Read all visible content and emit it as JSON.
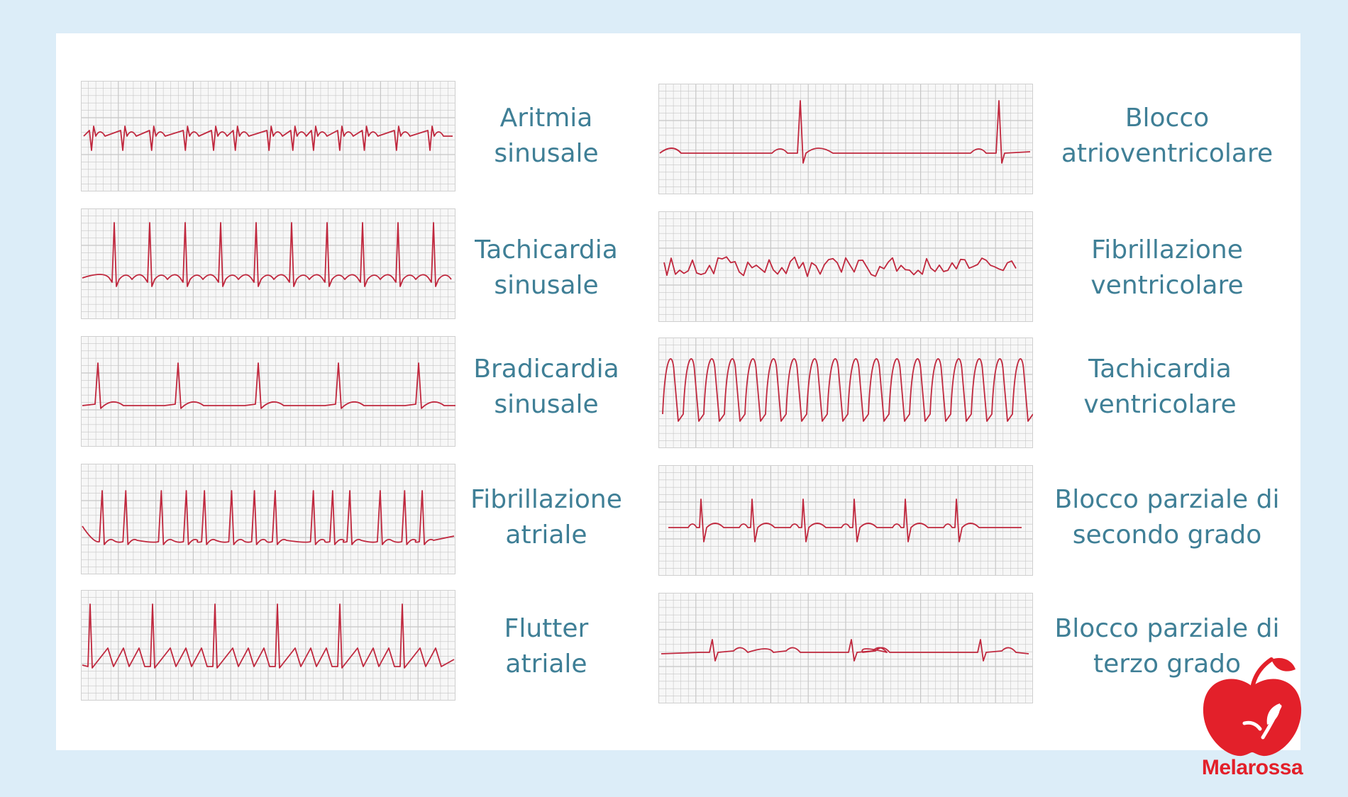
{
  "colors": {
    "background": "#dcedf8",
    "card": "#ffffff",
    "trace": "#c0283e",
    "grid": "#c6c6c6",
    "label": "#3f7f96",
    "brand": "#e3202a"
  },
  "panels": [
    {
      "line1": "Aritmia",
      "line2": "sinusale",
      "pattern": "irregular-sinus"
    },
    {
      "line1": "Tachicardia",
      "line2": "sinusale",
      "pattern": "fast-spikes"
    },
    {
      "line1": "Bradicardia",
      "line2": "sinusale",
      "pattern": "slow-spikes"
    },
    {
      "line1": "Fibrillazione",
      "line2": "atriale",
      "pattern": "irregular-spikes"
    },
    {
      "line1": "Flutter",
      "line2": "atriale",
      "pattern": "sawtooth-spikes"
    },
    {
      "line1": "Blocco",
      "line2": "atrioventricolare",
      "pattern": "av-block"
    },
    {
      "line1": "Fibrillazione",
      "line2": "ventricolare",
      "pattern": "chaotic"
    },
    {
      "line1": "Tachicardia",
      "line2": "ventricolare",
      "pattern": "wide-waves"
    },
    {
      "line1": "Blocco parziale di",
      "line2": "secondo grado",
      "pattern": "second-degree"
    },
    {
      "line1": "Blocco parziale di",
      "line2": "terzo grado",
      "pattern": "third-degree"
    }
  ],
  "logo": {
    "name": "apple-logo-icon",
    "text": "Melarossa"
  }
}
